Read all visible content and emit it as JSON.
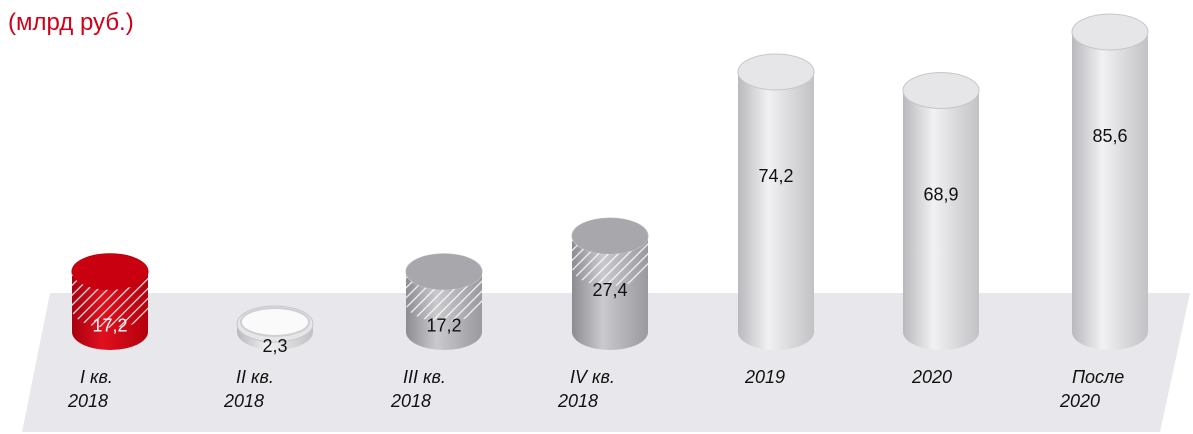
{
  "title": {
    "line1": "",
    "line2": "(млрд руб.)"
  },
  "colors": {
    "accent": "#d0021b",
    "highlight_bar": "#c8000f",
    "bar_light": "#d2d2d6",
    "bar_dark": "#a8a8ac",
    "floor": "#e8e8ec",
    "label_text": "#111111"
  },
  "chart_data": {
    "type": "bar",
    "categories": [
      "I кв. 2018",
      "II кв. 2018",
      "III кв. 2018",
      "IV кв. 2018",
      "2019",
      "2020",
      "После 2020"
    ],
    "category_lines": [
      [
        "I кв.",
        "2018"
      ],
      [
        "II кв.",
        "2018"
      ],
      [
        "III кв.",
        "2018"
      ],
      [
        "IV кв.",
        "2018"
      ],
      [
        "2019"
      ],
      [
        "2020"
      ],
      [
        "После",
        "2020"
      ]
    ],
    "values": [
      17.2,
      2.3,
      17.2,
      27.4,
      74.2,
      68.9,
      85.6
    ],
    "value_labels": [
      "17,2",
      "2,3",
      "17,2",
      "27,4",
      "74,2",
      "68,9",
      "85,6"
    ],
    "highlight_index": 0,
    "hatched_top": [
      true,
      false,
      true,
      true,
      false,
      false,
      false
    ],
    "style": "3d-cylinder",
    "title": "(млрд руб.)",
    "xlabel": "",
    "ylabel": "",
    "grid": false,
    "legend": "none"
  }
}
